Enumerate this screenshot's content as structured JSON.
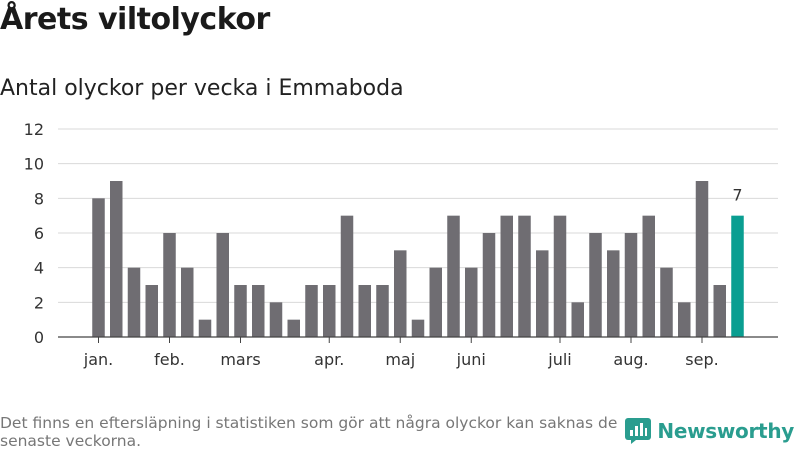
{
  "header": {
    "title": "Årets viltolyckor",
    "subtitle": "Antal olyckor per vecka i Emmaboda"
  },
  "footer": {
    "note": "Det finns en eftersläpning i statistiken som gör att några olyckor kan saknas de senaste veckorna.",
    "brand": "Newsworthy"
  },
  "colors": {
    "bar": "#6f6d72",
    "highlight": "#0a9e91",
    "grid": "#d9d9d9",
    "brand": "#2a9d8f"
  },
  "chart_data": {
    "type": "bar",
    "title": "Antal olyckor per vecka i Emmaboda",
    "xlabel": "",
    "ylabel": "",
    "ylim": [
      0,
      12
    ],
    "yticks": [
      0,
      2,
      4,
      6,
      8,
      10,
      12
    ],
    "grid": true,
    "values": [
      8,
      9,
      4,
      3,
      6,
      4,
      1,
      6,
      3,
      3,
      2,
      1,
      3,
      3,
      7,
      3,
      3,
      5,
      1,
      4,
      7,
      4,
      6,
      7,
      7,
      5,
      7,
      2,
      6,
      5,
      6,
      7,
      4,
      2,
      9,
      3,
      7
    ],
    "highlight_index": 36,
    "highlight_label": "7",
    "month_labels": [
      {
        "label": "jan.",
        "week": 1
      },
      {
        "label": "feb.",
        "week": 5
      },
      {
        "label": "mars",
        "week": 9
      },
      {
        "label": "apr.",
        "week": 14
      },
      {
        "label": "maj",
        "week": 18
      },
      {
        "label": "juni",
        "week": 22
      },
      {
        "label": "juli",
        "week": 27
      },
      {
        "label": "aug.",
        "week": 31
      },
      {
        "label": "sep.",
        "week": 35
      }
    ]
  }
}
